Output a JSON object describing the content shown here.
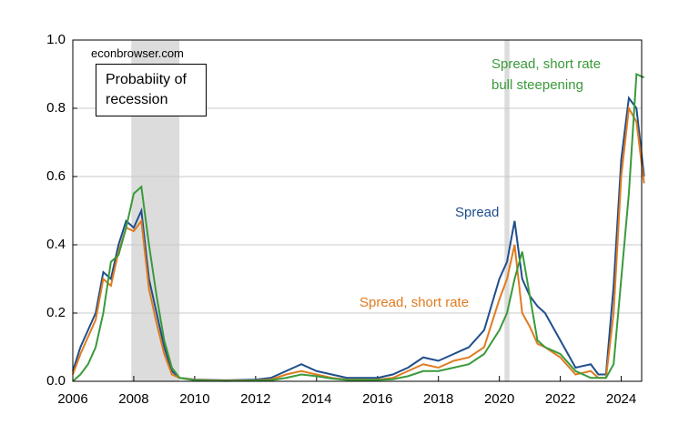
{
  "chart_data": {
    "type": "line",
    "annotations": {
      "source": "econbrowser.com",
      "box": [
        "Probabiity of",
        "recession"
      ]
    },
    "x": [
      2006,
      2006.25,
      2006.5,
      2006.75,
      2007,
      2007.25,
      2007.5,
      2007.75,
      2008,
      2008.25,
      2008.5,
      2008.75,
      2009,
      2009.25,
      2009.5,
      2010,
      2011,
      2012,
      2012.5,
      2013,
      2013.5,
      2014,
      2014.5,
      2015,
      2016,
      2016.5,
      2017,
      2017.5,
      2018,
      2018.5,
      2019,
      2019.5,
      2020,
      2020.25,
      2020.5,
      2020.75,
      2021,
      2021.25,
      2021.5,
      2022,
      2022.5,
      2023,
      2023.25,
      2023.5,
      2023.75,
      2024,
      2024.25,
      2024.5,
      2024.75
    ],
    "series": [
      {
        "name": "Spread",
        "color": "#1f4e8c",
        "values": [
          0.03,
          0.1,
          0.15,
          0.2,
          0.32,
          0.3,
          0.4,
          0.47,
          0.45,
          0.5,
          0.3,
          0.2,
          0.1,
          0.03,
          0.01,
          0.005,
          0.003,
          0.005,
          0.01,
          0.03,
          0.05,
          0.03,
          0.02,
          0.01,
          0.01,
          0.02,
          0.04,
          0.07,
          0.06,
          0.08,
          0.1,
          0.15,
          0.3,
          0.35,
          0.47,
          0.3,
          0.25,
          0.22,
          0.2,
          0.12,
          0.04,
          0.05,
          0.02,
          0.02,
          0.28,
          0.65,
          0.83,
          0.8,
          0.6
        ]
      },
      {
        "name": "Spread, short rate",
        "color": "#e07b20",
        "values": [
          0.02,
          0.08,
          0.13,
          0.18,
          0.3,
          0.28,
          0.38,
          0.45,
          0.44,
          0.47,
          0.27,
          0.17,
          0.08,
          0.02,
          0.01,
          0.004,
          0.002,
          0.003,
          0.005,
          0.02,
          0.03,
          0.02,
          0.01,
          0.005,
          0.005,
          0.01,
          0.03,
          0.05,
          0.04,
          0.06,
          0.07,
          0.1,
          0.24,
          0.3,
          0.4,
          0.2,
          0.16,
          0.11,
          0.1,
          0.07,
          0.02,
          0.03,
          0.01,
          0.01,
          0.2,
          0.6,
          0.8,
          0.76,
          0.58
        ]
      },
      {
        "name": "Spread, short rate bull steepening",
        "color": "#3a9a3a",
        "values": [
          0.0,
          0.02,
          0.05,
          0.1,
          0.2,
          0.35,
          0.37,
          0.45,
          0.55,
          0.57,
          0.4,
          0.25,
          0.12,
          0.04,
          0.01,
          0.003,
          0.001,
          0.002,
          0.003,
          0.01,
          0.02,
          0.015,
          0.008,
          0.004,
          0.004,
          0.006,
          0.015,
          0.03,
          0.03,
          0.04,
          0.05,
          0.08,
          0.15,
          0.2,
          0.3,
          0.38,
          0.25,
          0.12,
          0.1,
          0.08,
          0.03,
          0.01,
          0.01,
          0.01,
          0.05,
          0.3,
          0.55,
          0.9,
          0.89
        ]
      }
    ],
    "recessions": [
      [
        2007.92,
        2009.5
      ],
      [
        2020.17,
        2020.33
      ]
    ],
    "recession_color": "#dcdcdc",
    "xlim": [
      2006,
      2024.67
    ],
    "xticks": [
      2006,
      2008,
      2010,
      2012,
      2014,
      2016,
      2018,
      2020,
      2022,
      2024
    ],
    "ylim": [
      0,
      1
    ],
    "yticks": [
      {
        "value": 0,
        "label": "0.0"
      },
      0.2,
      0.4,
      0.6,
      0.8,
      {
        "value": 1,
        "label": "1.0"
      }
    ],
    "grid": true
  }
}
